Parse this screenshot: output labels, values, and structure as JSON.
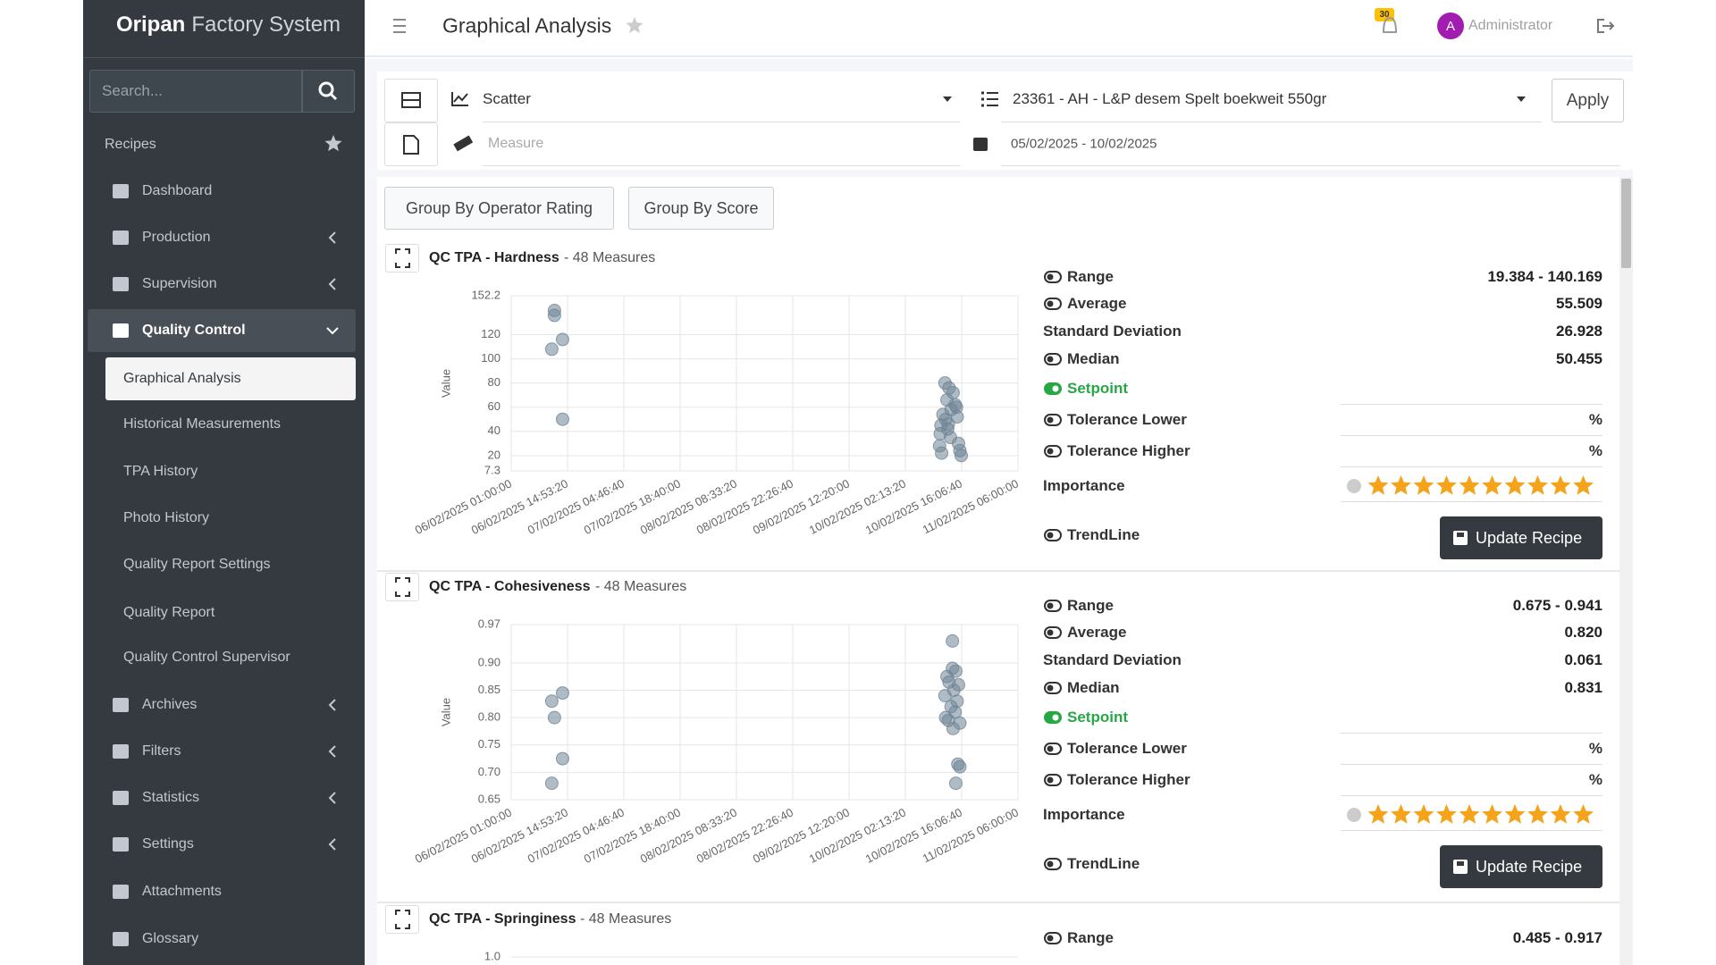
{
  "sidebar": {
    "brand_bold": "Oripan",
    "brand_rest": "Factory System",
    "search_placeholder": "Search...",
    "section": "Recipes",
    "menu": [
      {
        "label": "Dashboard"
      },
      {
        "label": "Production",
        "submenu": true
      },
      {
        "label": "Supervision",
        "submenu": true
      },
      {
        "label": "Quality Control",
        "submenu": true,
        "open": true,
        "children": [
          {
            "label": "Graphical Analysis",
            "active": true
          },
          {
            "label": "Historical Measurements"
          },
          {
            "label": "TPA History"
          },
          {
            "label": "Photo History"
          },
          {
            "label": "Quality Report Settings"
          },
          {
            "label": "Quality Report"
          },
          {
            "label": "Quality Control Supervisor"
          }
        ]
      },
      {
        "label": "Archives",
        "submenu": true
      },
      {
        "label": "Filters",
        "submenu": true
      },
      {
        "label": "Statistics",
        "submenu": true
      },
      {
        "label": "Settings",
        "submenu": true
      },
      {
        "label": "Attachments"
      },
      {
        "label": "Glossary"
      }
    ]
  },
  "header": {
    "title": "Graphical Analysis",
    "notifications": "30",
    "user_initial": "A",
    "user": "Administrator"
  },
  "toolbar": {
    "chart_type": "Scatter",
    "recipe": "23361 - AH - L&P desem Spelt boekweit 550gr",
    "apply": "Apply",
    "measure_placeholder": "Measure",
    "date_range": "05/02/2025 - 10/02/2025"
  },
  "group_buttons": [
    "Group By Operator Rating",
    "Group By Score"
  ],
  "panels": [
    {
      "title": "QC TPA - Hardness",
      "measures": "- 48 Measures",
      "chart": {
        "type": "scatter",
        "y_label": "Value",
        "color": "#6f8596",
        "x": [
          "06/02/2025 11:40:00",
          "06/02/2025 11:40:00",
          "06/02/2025 11:00:00",
          "06/02/2025 13:40:00",
          "06/02/2025 13:40:00",
          "10/02/2025 12:00:00",
          "10/02/2025 13:00:00",
          "10/02/2025 14:00:00",
          "10/02/2025 12:30:00",
          "10/02/2025 14:30:00",
          "10/02/2025 13:30:00",
          "10/02/2025 11:30:00",
          "10/02/2025 12:10:00",
          "10/02/2025 11:00:00",
          "10/02/2025 12:40:00",
          "10/02/2025 10:50:00",
          "10/02/2025 13:20:00",
          "10/02/2025 15:20:00",
          "10/02/2025 15:40:00",
          "10/02/2025 11:10:00",
          "10/02/2025 14:50:00",
          "10/02/2025 15:00:00",
          "10/02/2025 12:50:00",
          "10/02/2025 10:40:00",
          "10/02/2025 16:00:00"
        ],
        "values": [
          140,
          136,
          108,
          116,
          50,
          80,
          76,
          72,
          66,
          62,
          58,
          54,
          50,
          45,
          42,
          38,
          35,
          30,
          24,
          22,
          60,
          52,
          46,
          28,
          20
        ],
        "ylim": [
          7.3,
          152.2
        ],
        "yticks": [
          7.3,
          20,
          40,
          60,
          80,
          100,
          120,
          152.2
        ],
        "xlim": [
          "06/02/2025 01:00:00",
          "11/02/2025 06:00:00"
        ],
        "xticks": [
          "06/02/2025 01:00:00",
          "06/02/2025 14:53:20",
          "07/02/2025 04:46:40",
          "07/02/2025 18:40:00",
          "08/02/2025 08:33:20",
          "08/02/2025 22:26:40",
          "09/02/2025 12:20:00",
          "10/02/2025 02:13:20",
          "10/02/2025 16:06:40",
          "11/02/2025 06:00:00"
        ]
      },
      "stats": [
        {
          "label": "Range",
          "value": "19.384 - 140.169",
          "toggle": false
        },
        {
          "label": "Average",
          "value": "55.509",
          "toggle": false
        },
        {
          "label": "Standard Deviation",
          "value": "26.928"
        },
        {
          "label": "Median",
          "value": "50.455",
          "toggle": false
        },
        {
          "label": "Setpoint",
          "toggle": true
        },
        {
          "label": "Tolerance Lower",
          "unit": "%",
          "toggle": false
        },
        {
          "label": "Tolerance Higher",
          "unit": "%",
          "toggle": false
        }
      ],
      "importance_label": "Importance",
      "rating": 10,
      "trendline": "TrendLine",
      "button": "Update Recipe"
    },
    {
      "title": "QC TPA - Cohesiveness",
      "measures": "- 48 Measures",
      "chart": {
        "type": "scatter",
        "y_label": "Value",
        "color": "#6f8596",
        "x": [
          "06/02/2025 11:00:00",
          "06/02/2025 13:40:00",
          "06/02/2025 11:40:00",
          "06/02/2025 13:40:00",
          "06/02/2025 11:00:00",
          "10/02/2025 13:50:00",
          "10/02/2025 13:50:00",
          "10/02/2025 12:30:00",
          "10/02/2025 14:40:00",
          "10/02/2025 13:00:00",
          "10/02/2025 15:20:00",
          "10/02/2025 14:10:00",
          "10/02/2025 12:00:00",
          "10/02/2025 15:00:00",
          "10/02/2025 13:30:00",
          "10/02/2025 14:30:00",
          "10/02/2025 12:10:00",
          "10/02/2025 12:50:00",
          "10/02/2025 15:40:00",
          "10/02/2025 14:00:00",
          "10/02/2025 15:10:00",
          "10/02/2025 15:40:00",
          "10/02/2025 14:40:00"
        ],
        "values": [
          0.83,
          0.845,
          0.8,
          0.725,
          0.68,
          0.94,
          0.89,
          0.875,
          0.885,
          0.865,
          0.86,
          0.85,
          0.84,
          0.83,
          0.82,
          0.81,
          0.8,
          0.795,
          0.79,
          0.78,
          0.715,
          0.71,
          0.68
        ],
        "ylim": [
          0.65,
          0.97
        ],
        "yticks": [
          0.65,
          {
            "value": 0.7,
            "label": "0.70"
          },
          0.75,
          {
            "value": 0.8,
            "label": "0.80"
          },
          0.85,
          {
            "value": 0.9,
            "label": "0.90"
          },
          0.97
        ],
        "xlim": [
          "06/02/2025 01:00:00",
          "11/02/2025 06:00:00"
        ],
        "xticks": [
          "06/02/2025 01:00:00",
          "06/02/2025 14:53:20",
          "07/02/2025 04:46:40",
          "07/02/2025 18:40:00",
          "08/02/2025 08:33:20",
          "08/02/2025 22:26:40",
          "09/02/2025 12:20:00",
          "10/02/2025 02:13:20",
          "10/02/2025 16:06:40",
          "11/02/2025 06:00:00"
        ]
      },
      "stats": [
        {
          "label": "Range",
          "value": "0.675 - 0.941",
          "toggle": false
        },
        {
          "label": "Average",
          "value": "0.820",
          "toggle": false
        },
        {
          "label": "Standard Deviation",
          "value": "0.061"
        },
        {
          "label": "Median",
          "value": "0.831",
          "toggle": false
        },
        {
          "label": "Setpoint",
          "toggle": true
        },
        {
          "label": "Tolerance Lower",
          "unit": "%",
          "toggle": false
        },
        {
          "label": "Tolerance Higher",
          "unit": "%",
          "toggle": false
        }
      ],
      "importance_label": "Importance",
      "rating": 10,
      "trendline": "TrendLine",
      "button": "Update Recipe"
    },
    {
      "title": "QC TPA - Springiness",
      "measures": "- 48 Measures",
      "chart": {
        "type": "scatter",
        "yticks": [
          {
            "value": 1,
            "label": "1.0"
          }
        ]
      },
      "stats": [
        {
          "label": "Range",
          "value": "0.485 - 0.917",
          "toggle": false
        }
      ]
    }
  ]
}
